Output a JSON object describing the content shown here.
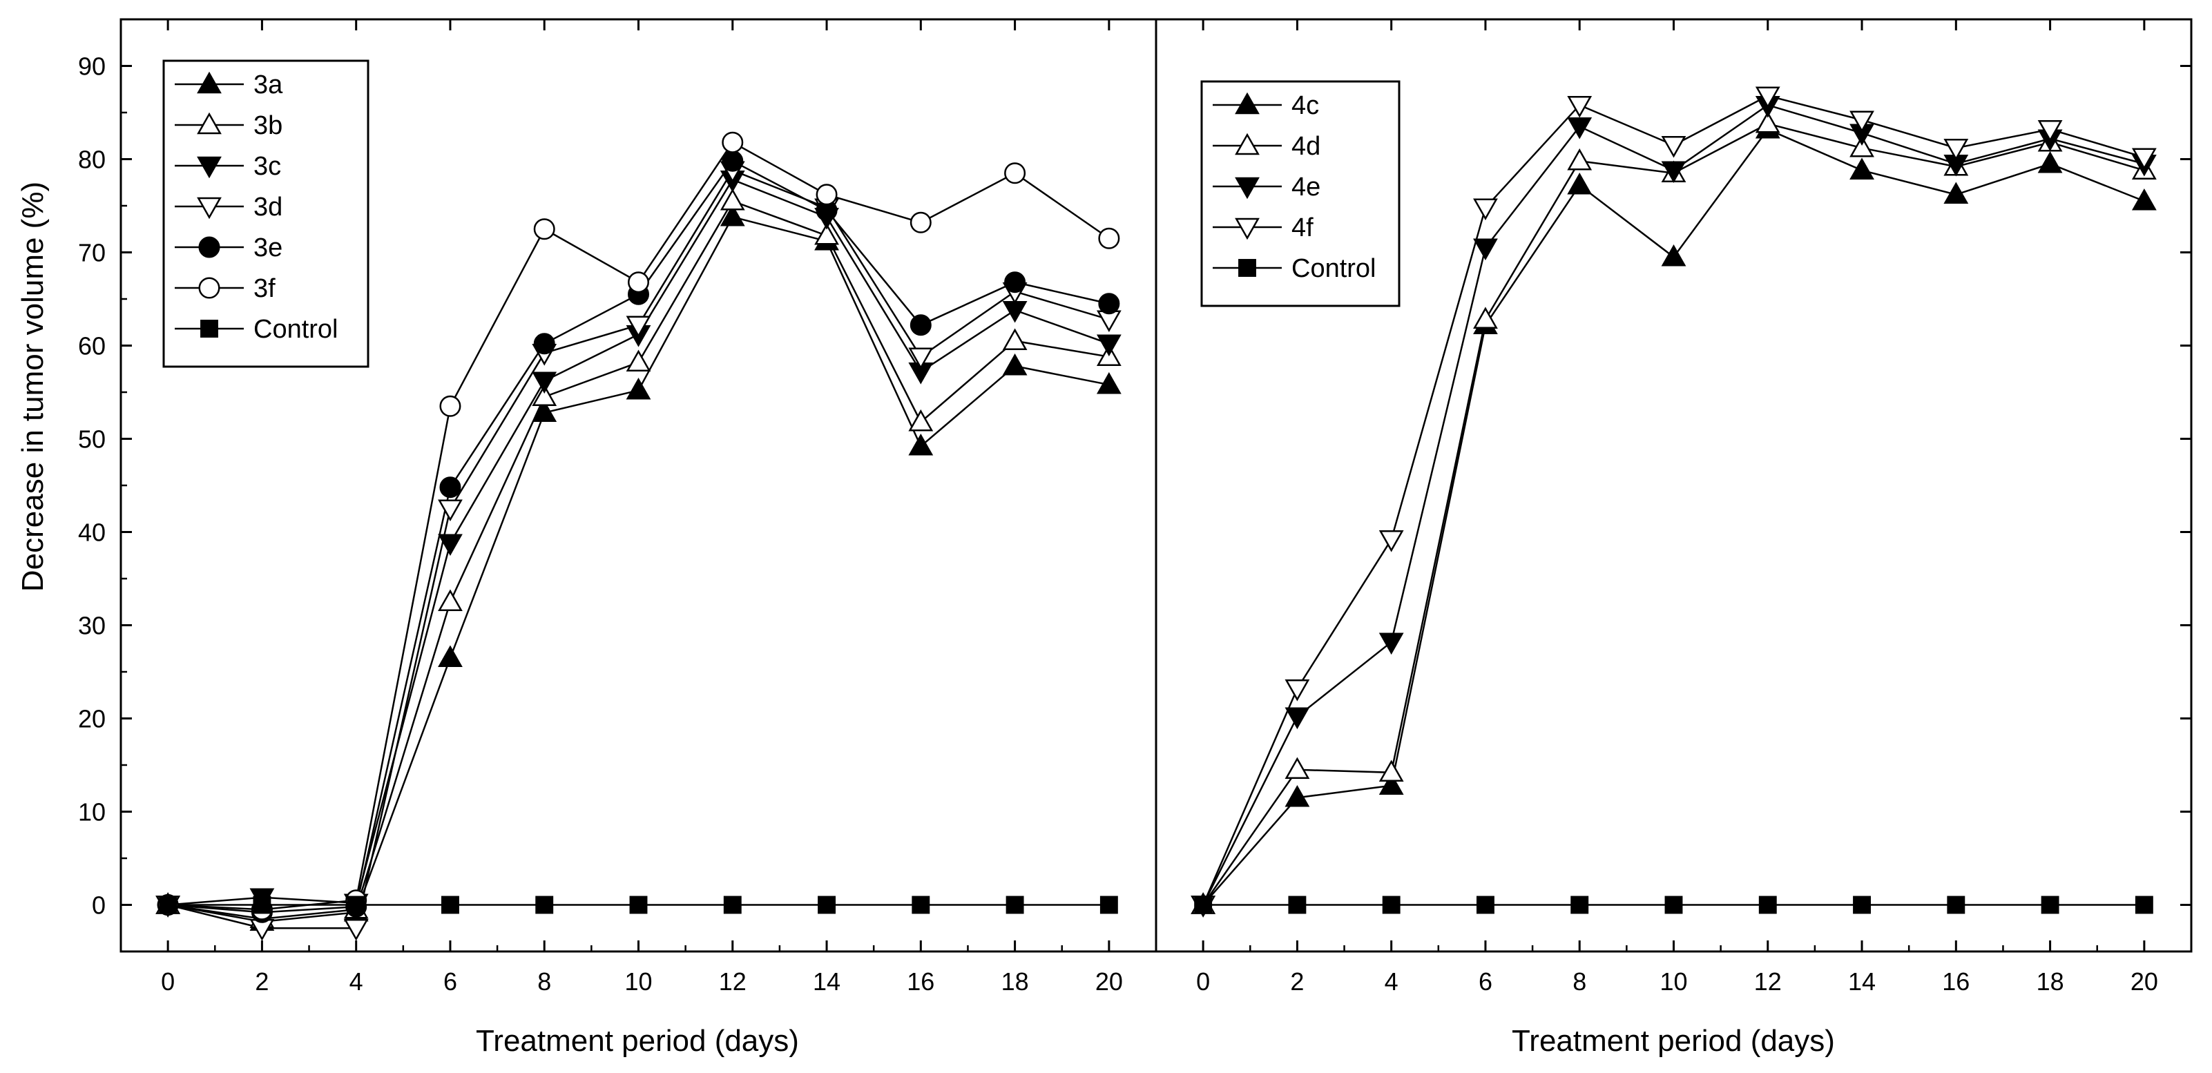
{
  "chart_data": {
    "type": "line",
    "ylabel": "Decrease in tumor volume (%)",
    "panels": [
      {
        "name": "left",
        "xlabel": "Treatment period (days)",
        "x": [
          0,
          2,
          4,
          6,
          8,
          10,
          12,
          14,
          16,
          18,
          20
        ],
        "xticks": [
          0,
          2,
          4,
          6,
          8,
          10,
          12,
          14,
          16,
          18,
          20
        ],
        "xlim": [
          -1,
          21
        ],
        "series": [
          {
            "name": "3a",
            "marker": "triangle-up-filled",
            "values": [
              0,
              -1.8,
              -0.8,
              26.5,
              52.8,
              55.2,
              73.8,
              71.2,
              49.2,
              57.8,
              55.8
            ]
          },
          {
            "name": "3b",
            "marker": "triangle-up-open",
            "values": [
              0,
              -1.5,
              -0.5,
              32.5,
              54.5,
              58.2,
              75.5,
              71.8,
              51.8,
              60.5,
              58.8
            ]
          },
          {
            "name": "3c",
            "marker": "triangle-down-filled",
            "values": [
              0,
              0.8,
              0.2,
              38.8,
              56.2,
              61.2,
              77.8,
              73.8,
              57.2,
              63.8,
              60.2
            ]
          },
          {
            "name": "3d",
            "marker": "triangle-down-open",
            "values": [
              0,
              -2.5,
              -2.5,
              42.5,
              59.2,
              62.2,
              78.8,
              74.8,
              58.8,
              65.8,
              62.8
            ]
          },
          {
            "name": "3e",
            "marker": "circle-filled",
            "values": [
              0,
              -0.8,
              -0.2,
              44.8,
              60.2,
              65.5,
              79.8,
              74.5,
              62.2,
              66.8,
              64.5
            ]
          },
          {
            "name": "3f",
            "marker": "circle-open",
            "values": [
              0,
              -0.5,
              0.5,
              53.5,
              72.5,
              66.8,
              81.8,
              76.2,
              73.2,
              78.5,
              71.5
            ]
          },
          {
            "name": "Control",
            "marker": "square-filled",
            "values": [
              0,
              0,
              0,
              0,
              0,
              0,
              0,
              0,
              0,
              0,
              0
            ]
          }
        ],
        "legend": {
          "position": "top-left",
          "entries": [
            "3a",
            "3b",
            "3c",
            "3d",
            "3e",
            "3f",
            "Control"
          ]
        }
      },
      {
        "name": "right",
        "xlabel": "Treatment period (days)",
        "x": [
          0,
          2,
          4,
          6,
          8,
          10,
          12,
          14,
          16,
          18,
          20
        ],
        "xticks": [
          0,
          2,
          4,
          6,
          8,
          10,
          12,
          14,
          16,
          18,
          20
        ],
        "xlim": [
          -1,
          21
        ],
        "series": [
          {
            "name": "4c",
            "marker": "triangle-up-filled",
            "values": [
              0,
              11.5,
              12.8,
              62.2,
              77.2,
              69.5,
              83.2,
              78.8,
              76.2,
              79.5,
              75.5
            ]
          },
          {
            "name": "4d",
            "marker": "triangle-up-open",
            "values": [
              0,
              14.5,
              14.2,
              62.8,
              79.8,
              78.5,
              83.8,
              81.2,
              79.2,
              81.8,
              78.8
            ]
          },
          {
            "name": "4e",
            "marker": "triangle-down-filled",
            "values": [
              0,
              20.2,
              28.2,
              70.5,
              83.5,
              78.8,
              85.8,
              82.8,
              79.5,
              82.2,
              79.5
            ]
          },
          {
            "name": "4f",
            "marker": "triangle-down-open",
            "values": [
              0,
              23.2,
              39.2,
              74.8,
              85.8,
              81.5,
              86.8,
              84.2,
              81.2,
              83.2,
              80.2
            ]
          },
          {
            "name": "Control",
            "marker": "square-filled",
            "values": [
              0,
              0,
              0,
              0,
              0,
              0,
              0,
              0,
              0,
              0,
              0
            ]
          }
        ],
        "legend": {
          "position": "top-left",
          "entries": [
            "4c",
            "4d",
            "4e",
            "4f",
            "Control"
          ]
        }
      }
    ],
    "ylim": [
      -5,
      95
    ],
    "yticks": [
      0,
      10,
      20,
      30,
      40,
      50,
      60,
      70,
      80,
      90
    ],
    "grid": false
  }
}
